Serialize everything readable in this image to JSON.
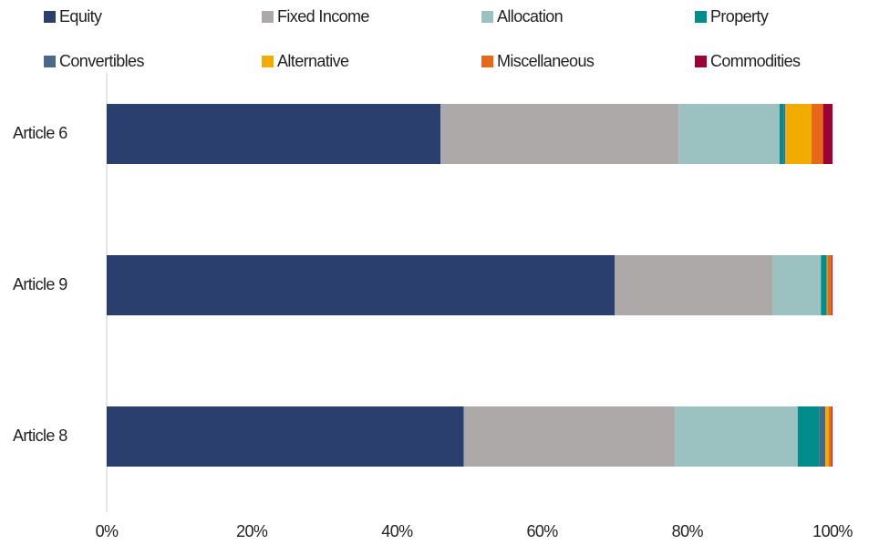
{
  "chart_data": {
    "type": "stacked_barh",
    "categories": [
      "Article 6",
      "Article 9",
      "Article 8"
    ],
    "series": [
      {
        "name": "Equity",
        "color": "#2a3f6e",
        "values": [
          46.0,
          70.0,
          49.2
        ]
      },
      {
        "name": "Fixed Income",
        "color": "#aca9a8",
        "values": [
          32.8,
          21.8,
          29.1
        ]
      },
      {
        "name": "Allocation",
        "color": "#9bc1c1",
        "values": [
          13.9,
          6.6,
          16.9
        ]
      },
      {
        "name": "Property",
        "color": "#038c8c",
        "values": [
          0.6,
          0.8,
          3.0
        ]
      },
      {
        "name": "Convertibles",
        "color": "#4d6789",
        "values": [
          0.2,
          0,
          0.8
        ]
      },
      {
        "name": "Alternative",
        "color": "#f2ac00",
        "values": [
          3.6,
          0.1,
          0.5
        ]
      },
      {
        "name": "Miscellaneous",
        "color": "#e8681a",
        "values": [
          1.6,
          0.6,
          0.4
        ]
      },
      {
        "name": "Commodities",
        "color": "#9b0236",
        "values": [
          1.3,
          0.1,
          0.1
        ]
      }
    ],
    "xlim": [
      0,
      100
    ],
    "xticks": [
      {
        "value": 0,
        "label": "0%"
      },
      {
        "value": 20,
        "label": "20%"
      },
      {
        "value": 40,
        "label": "40%"
      },
      {
        "value": 60,
        "label": "60%"
      },
      {
        "value": 80,
        "label": "80%"
      },
      {
        "value": 100,
        "label": "100%"
      }
    ]
  }
}
